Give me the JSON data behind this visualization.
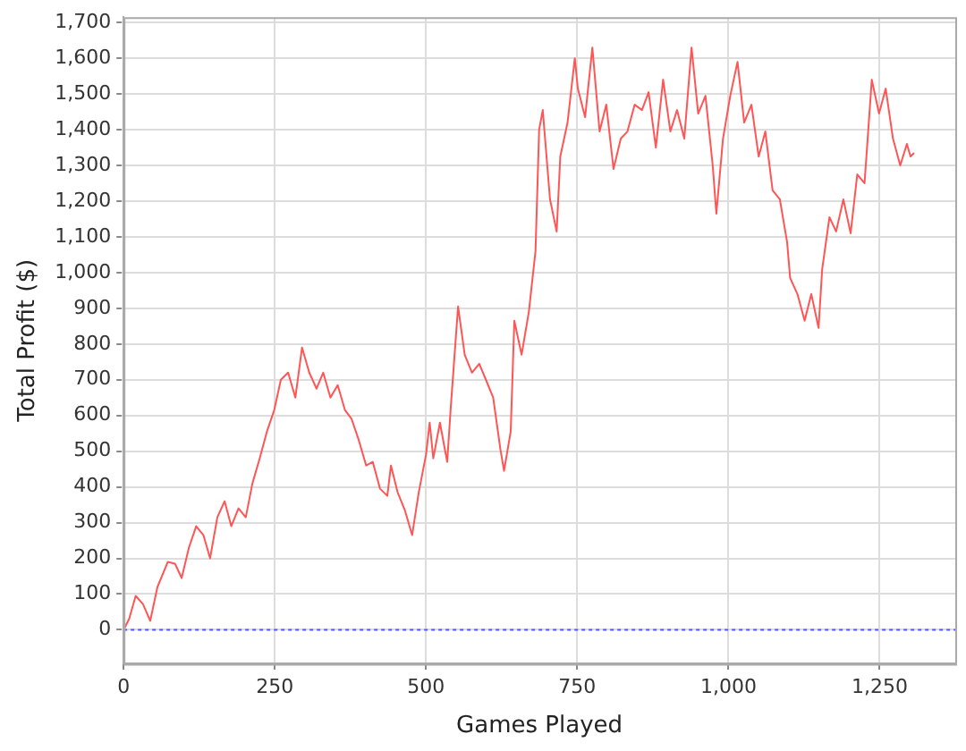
{
  "chart_data": {
    "type": "line",
    "xlabel": "Games Played",
    "ylabel": "Total Profit ($)",
    "xlim": [
      0,
      1375
    ],
    "ylim": [
      -95,
      1715
    ],
    "xticks": [
      0,
      250,
      500,
      750,
      {
        "value": 1000,
        "label": "1,000"
      },
      {
        "value": 1250,
        "label": "1,250"
      }
    ],
    "yticks": [
      0,
      100,
      200,
      300,
      400,
      500,
      600,
      700,
      800,
      900,
      {
        "value": 1000,
        "label": "1,000"
      },
      {
        "value": 1100,
        "label": "1,100"
      },
      {
        "value": 1200,
        "label": "1,200"
      },
      {
        "value": 1300,
        "label": "1,300"
      },
      {
        "value": 1400,
        "label": "1,400"
      },
      {
        "value": 1500,
        "label": "1,500"
      },
      {
        "value": 1600,
        "label": "1,600"
      },
      {
        "value": 1700,
        "label": "1,700"
      }
    ],
    "grid": true,
    "legend": false,
    "marker": "none",
    "line_style": "solid",
    "ref_lines": [
      {
        "axis": "y",
        "value": 0,
        "color": "#5555ff",
        "line_style": "dotted"
      }
    ],
    "series": [
      {
        "color": "#ff5555",
        "x": [
          0,
          9,
          20,
          32,
          44,
          56,
          73,
          85,
          96,
          108,
          120,
          132,
          143,
          155,
          167,
          178,
          190,
          202,
          213,
          225,
          237,
          249,
          260,
          272,
          284,
          295,
          307,
          319,
          330,
          342,
          354,
          366,
          377,
          389,
          401,
          412,
          424,
          436,
          442,
          453,
          465,
          477,
          488,
          500,
          506,
          512,
          523,
          535,
          541,
          553,
          564,
          576,
          588,
          599,
          611,
          623,
          629,
          640,
          646,
          658,
          670,
          681,
          687,
          693,
          705,
          716,
          722,
          734,
          746,
          751,
          763,
          775,
          787,
          798,
          810,
          822,
          833,
          845,
          857,
          868,
          880,
          892,
          904,
          915,
          927,
          939,
          950,
          962,
          974,
          980,
          991,
          1003,
          1015,
          1026,
          1038,
          1050,
          1061,
          1073,
          1085,
          1097,
          1102,
          1114,
          1126,
          1137,
          1149,
          1155,
          1167,
          1178,
          1190,
          1202,
          1213,
          1225,
          1237,
          1249,
          1260,
          1272,
          1284,
          1295,
          1301,
          1307
        ],
        "values": [
          0,
          30,
          95,
          72,
          25,
          120,
          190,
          185,
          145,
          230,
          290,
          265,
          200,
          315,
          360,
          290,
          340,
          315,
          410,
          480,
          555,
          615,
          700,
          720,
          650,
          790,
          720,
          675,
          720,
          650,
          685,
          615,
          590,
          530,
          460,
          470,
          395,
          375,
          460,
          385,
          335,
          265,
          385,
          490,
          580,
          480,
          580,
          470,
          625,
          905,
          770,
          720,
          745,
          700,
          650,
          505,
          445,
          555,
          865,
          770,
          890,
          1060,
          1400,
          1455,
          1205,
          1115,
          1325,
          1420,
          1600,
          1515,
          1435,
          1630,
          1395,
          1470,
          1290,
          1375,
          1395,
          1470,
          1455,
          1505,
          1350,
          1540,
          1395,
          1455,
          1375,
          1630,
          1445,
          1495,
          1300,
          1165,
          1375,
          1495,
          1590,
          1420,
          1470,
          1325,
          1395,
          1230,
          1205,
          1085,
          985,
          940,
          865,
          940,
          845,
          1010,
          1155,
          1115,
          1205,
          1110,
          1275,
          1250,
          1540,
          1445,
          1515,
          1375,
          1300,
          1360,
          1325,
          1335
        ]
      }
    ]
  }
}
